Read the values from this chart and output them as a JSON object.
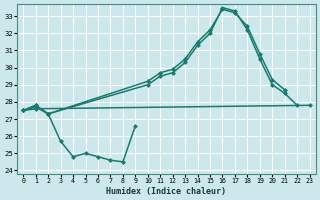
{
  "xlabel": "Humidex (Indice chaleur)",
  "xlim": [
    -0.5,
    23.5
  ],
  "ylim": [
    23.8,
    33.7
  ],
  "yticks": [
    24,
    25,
    26,
    27,
    28,
    29,
    30,
    31,
    32,
    33
  ],
  "xticks": [
    0,
    1,
    2,
    3,
    4,
    5,
    6,
    7,
    8,
    9,
    10,
    11,
    12,
    13,
    14,
    15,
    16,
    17,
    18,
    19,
    20,
    21,
    22,
    23
  ],
  "bg_color": "#cce8ec",
  "grid_color": "#ffffff",
  "line_color": "#1a7a6e",
  "line_width": 1.1,
  "marker_size": 2.5,
  "series1_x": [
    0,
    1,
    2,
    3,
    4,
    5,
    6,
    7,
    8,
    9
  ],
  "series1_y": [
    27.5,
    27.7,
    27.3,
    25.7,
    24.8,
    25.0,
    24.8,
    24.6,
    24.5,
    26.6
  ],
  "series2_x": [
    0,
    1,
    23
  ],
  "series2_y": [
    27.5,
    27.6,
    27.8
  ],
  "series3_x": [
    0,
    1,
    2,
    10,
    11,
    12,
    13,
    14,
    15,
    16,
    17,
    18,
    19,
    20,
    21
  ],
  "series3_y": [
    27.5,
    27.8,
    27.3,
    29.2,
    29.7,
    29.9,
    30.5,
    31.5,
    32.2,
    33.4,
    33.2,
    32.4,
    30.8,
    29.3,
    28.7
  ],
  "series4_x": [
    0,
    1,
    2,
    10,
    11,
    12,
    13,
    14,
    15,
    16,
    17,
    18,
    19,
    20,
    21,
    22
  ],
  "series4_y": [
    27.5,
    27.8,
    27.3,
    29.0,
    29.5,
    29.7,
    30.3,
    31.3,
    32.0,
    33.5,
    33.3,
    32.2,
    30.5,
    29.0,
    28.5,
    27.8
  ]
}
